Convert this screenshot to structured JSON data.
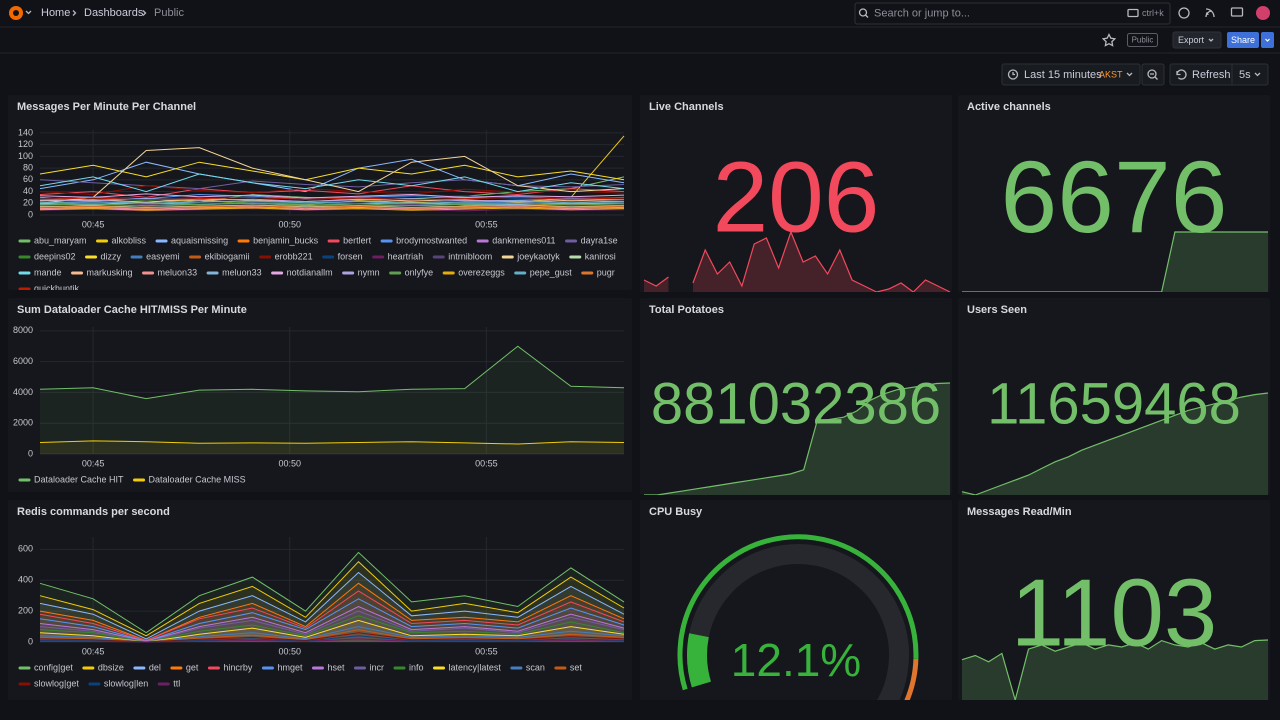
{
  "header": {
    "breadcrumbs": [
      "Home",
      "Dashboards",
      "Public"
    ],
    "search_placeholder": "Search or jump to...",
    "search_shortcut": "ctrl+k"
  },
  "toolbar": {
    "badge": "Public",
    "export": "Export",
    "share": "Share"
  },
  "time": {
    "range": "Last 15 minutes",
    "timezone": "AKST",
    "refresh": "Refresh",
    "interval": "5s"
  },
  "panels": [
    {
      "type": "line",
      "title": "Messages Per Minute Per Channel",
      "ylim": [
        0,
        145
      ],
      "yticks": [
        0,
        20,
        40,
        60,
        80,
        100,
        120,
        140
      ],
      "xlim": [
        43.65,
        58.5
      ],
      "xticks": [
        {
          "value": 45,
          "label": "00:45"
        },
        {
          "value": 50,
          "label": "00:50"
        },
        {
          "value": 55,
          "label": "00:55"
        }
      ],
      "x": [
        43.65,
        45,
        46.35,
        47.7,
        49.05,
        50.4,
        51.75,
        53.1,
        54.45,
        55.8,
        57.15,
        58.5
      ],
      "grid": true,
      "fill": false,
      "series": [
        {
          "name": "abu_maryam",
          "color": "#73BF69",
          "values": [
            30,
            25,
            28,
            22,
            35,
            30,
            26,
            28,
            32,
            40,
            45,
            65
          ]
        },
        {
          "name": "alkobliss",
          "color": "#F2CC0C",
          "values": [
            20,
            18,
            22,
            25,
            20,
            18,
            24,
            22,
            19,
            21,
            30,
            135
          ]
        },
        {
          "name": "aquaismissing",
          "color": "#8AB8FF",
          "values": [
            45,
            60,
            90,
            70,
            55,
            40,
            80,
            95,
            60,
            50,
            70,
            55
          ]
        },
        {
          "name": "benjamin_bucks",
          "color": "#FF780A",
          "values": [
            15,
            12,
            18,
            14,
            16,
            13,
            15,
            17,
            14,
            16,
            18,
            20
          ]
        },
        {
          "name": "bertlert",
          "color": "#F2495C",
          "values": [
            35,
            40,
            30,
            45,
            38,
            42,
            36,
            50,
            40,
            35,
            45,
            40
          ]
        },
        {
          "name": "brodymostwanted",
          "color": "#5794F2",
          "values": [
            25,
            30,
            28,
            35,
            32,
            27,
            30,
            33,
            29,
            31,
            28,
            30
          ]
        },
        {
          "name": "dankmemes011",
          "color": "#B877D9",
          "values": [
            10,
            12,
            9,
            14,
            11,
            13,
            10,
            12,
            15,
            11,
            13,
            12
          ]
        },
        {
          "name": "dayra1se",
          "color": "#705DA0",
          "values": [
            60,
            55,
            50,
            45,
            58,
            52,
            48,
            55,
            60,
            50,
            48,
            52
          ]
        },
        {
          "name": "deepins02",
          "color": "#37872D",
          "values": [
            22,
            20,
            25,
            18,
            23,
            21,
            19,
            24,
            22,
            20,
            23,
            21
          ]
        },
        {
          "name": "dizzy",
          "color": "#FADE2A",
          "values": [
            70,
            85,
            65,
            90,
            75,
            60,
            80,
            70,
            85,
            65,
            75,
            60
          ]
        },
        {
          "name": "easyemi",
          "color": "#447EBC",
          "values": [
            18,
            22,
            20,
            17,
            21,
            19,
            23,
            18,
            20,
            22,
            19,
            21
          ]
        },
        {
          "name": "ekibiogamii",
          "color": "#C15C17",
          "values": [
            12,
            10,
            14,
            11,
            13,
            9,
            12,
            10,
            14,
            12,
            11,
            13
          ]
        },
        {
          "name": "erobb221",
          "color": "#890F02",
          "values": [
            40,
            35,
            50,
            42,
            38,
            45,
            40,
            36,
            44,
            39,
            41,
            37
          ]
        },
        {
          "name": "forsen",
          "color": "#0A437C",
          "values": [
            28,
            32,
            26,
            30,
            34,
            29,
            27,
            31,
            33,
            28,
            30,
            29
          ]
        },
        {
          "name": "heartriah",
          "color": "#6D1F62",
          "values": [
            8,
            10,
            7,
            9,
            11,
            8,
            10,
            9,
            7,
            10,
            8,
            9
          ]
        },
        {
          "name": "intrnibloom",
          "color": "#584477",
          "values": [
            16,
            14,
            18,
            15,
            17,
            13,
            16,
            18,
            14,
            15,
            17,
            16
          ]
        },
        {
          "name": "joeykaotyk",
          "color": "#F4D598",
          "values": [
            20,
            30,
            110,
            115,
            80,
            60,
            40,
            90,
            100,
            50,
            40,
            45
          ]
        },
        {
          "name": "kanirosi",
          "color": "#B7DBAB",
          "values": [
            14,
            16,
            13,
            15,
            17,
            14,
            16,
            13,
            15,
            17,
            14,
            16
          ]
        },
        {
          "name": "mande",
          "color": "#70DBED",
          "values": [
            50,
            65,
            40,
            70,
            55,
            45,
            60,
            50,
            65,
            40,
            55,
            45
          ]
        },
        {
          "name": "markusking",
          "color": "#F9BA8F",
          "values": [
            24,
            26,
            22,
            28,
            25,
            23,
            27,
            24,
            26,
            22,
            25,
            23
          ]
        },
        {
          "name": "meluon33",
          "color": "#F29191",
          "values": [
            11,
            13,
            10,
            12,
            14,
            11,
            13,
            10,
            12,
            14,
            11,
            13
          ]
        },
        {
          "name": "meluon33",
          "color": "#82B5D8",
          "values": [
            19,
            17,
            21,
            18,
            20,
            16,
            19,
            21,
            17,
            18,
            20,
            19
          ]
        },
        {
          "name": "notdianallm",
          "color": "#E5A8E2",
          "values": [
            33,
            30,
            36,
            31,
            34,
            29,
            32,
            35,
            30,
            33,
            31,
            34
          ]
        },
        {
          "name": "nymn",
          "color": "#AEA2E0",
          "values": [
            26,
            24,
            28,
            25,
            27,
            23,
            26,
            28,
            24,
            25,
            27,
            26
          ]
        },
        {
          "name": "onlyfye",
          "color": "#629E51",
          "values": [
            17,
            19,
            16,
            18,
            20,
            17,
            19,
            16,
            18,
            20,
            17,
            19
          ]
        },
        {
          "name": "overezeggs",
          "color": "#E5AC0E",
          "values": [
            9,
            11,
            8,
            10,
            12,
            9,
            11,
            8,
            10,
            12,
            9,
            11
          ]
        },
        {
          "name": "pepe_gust",
          "color": "#64B0C8",
          "values": [
            21,
            23,
            20,
            22,
            24,
            21,
            23,
            20,
            22,
            24,
            21,
            23
          ]
        },
        {
          "name": "pugr",
          "color": "#E0752D",
          "values": [
            13,
            15,
            12,
            14,
            16,
            13,
            15,
            12,
            14,
            16,
            13,
            15
          ]
        },
        {
          "name": "quickhuntik",
          "color": "#BF1B00",
          "values": [
            27,
            29,
            26,
            28,
            30,
            27,
            29,
            26,
            28,
            30,
            27,
            29
          ]
        }
      ]
    },
    {
      "type": "stat",
      "title": "Live Channels",
      "value": 206,
      "color": "#F2495C",
      "sparkline": [
        170,
        160,
        175,
        null,
        165,
        220,
        180,
        200,
        160,
        230,
        240,
        190,
        250,
        200,
        210,
        180,
        220,
        170,
        160,
        150,
        155,
        165,
        150,
        170,
        160,
        150
      ]
    },
    {
      "type": "stat",
      "title": "Active channels",
      "value": 6676,
      "color": "#73BF69",
      "sparkline": [
        0,
        0,
        0,
        0,
        0,
        0,
        0,
        0,
        0,
        0,
        0,
        0,
        0,
        0,
        0,
        0,
        6676,
        6676,
        6676,
        6676,
        6676,
        6676,
        6676,
        6676
      ]
    },
    {
      "type": "line",
      "title": "Sum Dataloader Cache HIT/MISS Per Minute",
      "ylim": [
        0,
        8250
      ],
      "yticks": [
        0,
        2000,
        4000,
        6000,
        8000
      ],
      "xlim": [
        43.65,
        58.5
      ],
      "xticks": [
        {
          "value": 45,
          "label": "00:45"
        },
        {
          "value": 50,
          "label": "00:50"
        },
        {
          "value": 55,
          "label": "00:55"
        }
      ],
      "x": [
        43.65,
        45,
        46.35,
        47.7,
        49.05,
        50.4,
        51.75,
        53.1,
        54.45,
        55.8,
        57.15,
        58.5
      ],
      "grid": true,
      "fill": true,
      "series": [
        {
          "name": "Dataloader Cache HIT",
          "color": "#73BF69",
          "values": [
            4200,
            4300,
            3600,
            4150,
            4200,
            4100,
            4050,
            4200,
            4250,
            7000,
            4400,
            4300
          ]
        },
        {
          "name": "Dataloader Cache MISS",
          "color": "#F2CC0C",
          "values": [
            750,
            850,
            800,
            700,
            720,
            700,
            750,
            800,
            720,
            650,
            800,
            750
          ]
        }
      ]
    },
    {
      "type": "stat",
      "title": "Total Potatoes",
      "value": 881032386,
      "color": "#73BF69",
      "sparkline": [
        880500000,
        880500000,
        880510000,
        880520000,
        880530000,
        880540000,
        880550000,
        880560000,
        880570000,
        880580000,
        880590000,
        880600000,
        880620000,
        880850000,
        880860000,
        880870000,
        880900000,
        880950000,
        880980000,
        881000000,
        881010000,
        881020000,
        881030000,
        881032386
      ]
    },
    {
      "type": "stat",
      "title": "Users Seen",
      "value": 11659468,
      "color": "#73BF69",
      "sparkline": [
        11600000,
        11598000,
        11601000,
        11604000,
        11607000,
        11610000,
        11614000,
        11618000,
        11621000,
        11625000,
        11628000,
        11631000,
        11634000,
        11637000,
        11640000,
        11643000,
        11646000,
        11649000,
        11651000,
        11653000,
        11655000,
        11657000,
        11658500,
        11659468
      ]
    },
    {
      "type": "line",
      "title": "Redis commands per second",
      "ylim": [
        0,
        680
      ],
      "yticks": [
        0,
        200,
        400,
        600
      ],
      "xlim": [
        43.65,
        58.5
      ],
      "xticks": [
        {
          "value": 45,
          "label": "00:45"
        },
        {
          "value": 50,
          "label": "00:50"
        },
        {
          "value": 55,
          "label": "00:55"
        }
      ],
      "x": [
        43.65,
        45,
        46.35,
        47.7,
        49.05,
        50.4,
        51.75,
        53.1,
        54.45,
        55.8,
        57.15,
        58.5
      ],
      "grid": true,
      "fill": true,
      "series": [
        {
          "name": "config|get",
          "color": "#73BF69",
          "values": [
            380,
            280,
            60,
            300,
            420,
            200,
            580,
            260,
            300,
            230,
            480,
            260
          ]
        },
        {
          "name": "dbsize",
          "color": "#F2CC0C",
          "values": [
            300,
            210,
            40,
            250,
            360,
            160,
            520,
            200,
            250,
            190,
            420,
            220
          ]
        },
        {
          "name": "del",
          "color": "#8AB8FF",
          "values": [
            250,
            180,
            20,
            200,
            300,
            130,
            450,
            170,
            200,
            160,
            360,
            180
          ]
        },
        {
          "name": "get",
          "color": "#FF780A",
          "values": [
            200,
            140,
            10,
            160,
            250,
            100,
            380,
            140,
            160,
            130,
            300,
            150
          ]
        },
        {
          "name": "hincrby",
          "color": "#F2495C",
          "values": [
            180,
            120,
            10,
            150,
            220,
            90,
            330,
            120,
            140,
            110,
            260,
            130
          ]
        },
        {
          "name": "hmget",
          "color": "#5794F2",
          "values": [
            150,
            100,
            5,
            120,
            190,
            80,
            280,
            100,
            120,
            90,
            220,
            110
          ]
        },
        {
          "name": "hset",
          "color": "#B877D9",
          "values": [
            120,
            80,
            5,
            100,
            160,
            60,
            230,
            80,
            100,
            70,
            180,
            90
          ]
        },
        {
          "name": "incr",
          "color": "#705DA0",
          "values": [
            100,
            70,
            0,
            90,
            140,
            50,
            200,
            70,
            90,
            60,
            160,
            80
          ]
        },
        {
          "name": "info",
          "color": "#37872D",
          "values": [
            80,
            60,
            0,
            70,
            110,
            40,
            170,
            60,
            70,
            50,
            130,
            60
          ]
        },
        {
          "name": "latency|latest",
          "color": "#FADE2A",
          "values": [
            60,
            40,
            0,
            50,
            90,
            30,
            140,
            40,
            50,
            40,
            100,
            50
          ]
        },
        {
          "name": "scan",
          "color": "#447EBC",
          "values": [
            40,
            30,
            0,
            35,
            60,
            20,
            100,
            30,
            40,
            30,
            70,
            40
          ]
        },
        {
          "name": "set",
          "color": "#C15C17",
          "values": [
            30,
            20,
            0,
            25,
            45,
            15,
            80,
            20,
            30,
            20,
            50,
            30
          ]
        },
        {
          "name": "slowlog|get",
          "color": "#890F02",
          "values": [
            20,
            15,
            0,
            18,
            30,
            10,
            60,
            15,
            20,
            15,
            35,
            20
          ]
        },
        {
          "name": "slowlog|len",
          "color": "#0A437C",
          "values": [
            10,
            8,
            0,
            10,
            20,
            5,
            40,
            8,
            10,
            8,
            20,
            10
          ]
        },
        {
          "name": "ttl",
          "color": "#6D1F62",
          "values": [
            5,
            4,
            0,
            5,
            10,
            3,
            20,
            4,
            5,
            4,
            10,
            5
          ]
        }
      ]
    },
    {
      "type": "gauge",
      "title": "CPU Busy",
      "value": 12.1,
      "value_label": "12.1%",
      "color": "#37B33C",
      "ylim": [
        0,
        100
      ],
      "thresholds": [
        {
          "value": 0,
          "color": "#37B33C"
        },
        {
          "value": 85,
          "color": "#E0752D"
        },
        {
          "value": 95,
          "color": "#F2495C"
        }
      ]
    },
    {
      "type": "stat",
      "title": "Messages Read/Min",
      "value": 1103,
      "color": "#73BF69",
      "sparkline": [
        1010,
        1030,
        1000,
        1040,
        820,
        1060,
        1080,
        1050,
        1070,
        1090,
        1060,
        1080,
        1070,
        1090,
        1060,
        1100,
        1080,
        1070,
        1090,
        1060,
        1080,
        1070,
        1100,
        1103
      ]
    }
  ]
}
